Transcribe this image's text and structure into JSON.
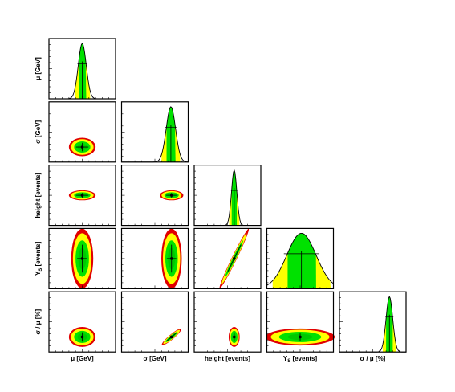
{
  "chart_data": {
    "type": "corner-plot",
    "parameters": [
      {
        "key": "mu",
        "label": "μ [GeV]",
        "marginal": {
          "peak": 0.5,
          "width": 0.06
        }
      },
      {
        "key": "sigma",
        "label": "σ [GeV]",
        "marginal": {
          "peak": 0.74,
          "width": 0.07
        }
      },
      {
        "key": "height",
        "label": "height [events]",
        "marginal": {
          "peak": 0.6,
          "width": 0.04
        }
      },
      {
        "key": "ys",
        "label": "Y",
        "label_sub": "S",
        "label_unit": " [events]",
        "marginal": {
          "peak": 0.52,
          "width": 0.22
        }
      },
      {
        "key": "ratio",
        "label": "σ / μ [%]",
        "marginal": {
          "peak": 0.75,
          "width": 0.05
        }
      }
    ],
    "pairs": [
      {
        "row": 1,
        "col": 0,
        "cx": 0.5,
        "cy": 0.75,
        "rx": 0.17,
        "ry": 0.13,
        "rot": 0
      },
      {
        "row": 2,
        "col": 0,
        "cx": 0.5,
        "cy": 0.5,
        "rx": 0.17,
        "ry": 0.07,
        "rot": 0
      },
      {
        "row": 2,
        "col": 1,
        "cx": 0.75,
        "cy": 0.5,
        "rx": 0.15,
        "ry": 0.07,
        "rot": 0
      },
      {
        "row": 3,
        "col": 0,
        "cx": 0.5,
        "cy": 0.5,
        "rx": 0.14,
        "ry": 0.42,
        "rot": 0
      },
      {
        "row": 3,
        "col": 1,
        "cx": 0.75,
        "cy": 0.5,
        "rx": 0.13,
        "ry": 0.42,
        "rot": 0
      },
      {
        "row": 3,
        "col": 2,
        "cx": 0.6,
        "cy": 0.5,
        "rx": 0.42,
        "ry": 0.035,
        "rot": -64
      },
      {
        "row": 4,
        "col": 0,
        "cx": 0.5,
        "cy": 0.75,
        "rx": 0.17,
        "ry": 0.14,
        "rot": 0
      },
      {
        "row": 4,
        "col": 1,
        "cx": 0.75,
        "cy": 0.75,
        "rx": 0.16,
        "ry": 0.035,
        "rot": -40
      },
      {
        "row": 4,
        "col": 2,
        "cx": 0.6,
        "cy": 0.75,
        "rx": 0.07,
        "ry": 0.14,
        "rot": 0
      },
      {
        "row": 4,
        "col": 3,
        "cx": 0.5,
        "cy": 0.75,
        "rx": 0.44,
        "ry": 0.12,
        "rot": 0
      }
    ],
    "bands": {
      "outer": "#e10000",
      "sigma3": "#ffff00",
      "sigma2": "#00e100",
      "sigma1": "#00c800",
      "marker": "#000000"
    },
    "grid": false
  }
}
